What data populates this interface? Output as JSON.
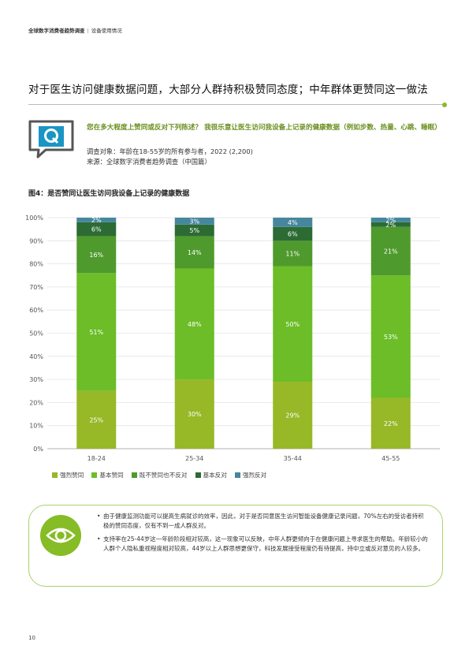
{
  "header": {
    "report": "全球数字消费者趋势调查",
    "section": "设备使用情况"
  },
  "headline": "对于医生访问健康数据问题，大部分人群持积极赞同态度；中年群体更赞同这一做法",
  "question": {
    "text": "您在多大程度上赞同或反对下列陈述？ 我很乐意让医生访问我设备上记录的健康数据（例如步数、热量、心跳、睡眠）",
    "respondents": "调查对象：年龄在18-55岁的所有参与者，2022 (2,200)",
    "source": "来源：全球数字消费者趋势调查（中国篇）"
  },
  "figure_title": "图4：是否赞同让医生访问我设备上记录的健康数据",
  "chart_data": {
    "type": "bar",
    "stacked": true,
    "categories": [
      "18-24",
      "25-34",
      "35-44",
      "45-55"
    ],
    "series": [
      {
        "name": "强烈赞同",
        "color": "#97b827",
        "values": [
          25,
          30,
          29,
          22
        ],
        "labels": [
          "25%",
          "30%",
          "29%",
          "22%"
        ]
      },
      {
        "name": "基本赞同",
        "color": "#6cbd27",
        "values": [
          51,
          48,
          50,
          53
        ],
        "labels": [
          "51%",
          "48%",
          "50%",
          "53%"
        ]
      },
      {
        "name": "既不赞同也不反对",
        "color": "#4f9a2c",
        "values": [
          16,
          14,
          11,
          21
        ],
        "labels": [
          "16%",
          "14%",
          "11%",
          "21%"
        ]
      },
      {
        "name": "基本反对",
        "color": "#2c6b34",
        "values": [
          6,
          5,
          6,
          2
        ],
        "labels": [
          "6%",
          "5%",
          "6%",
          "2%"
        ]
      },
      {
        "name": "强烈反对",
        "color": "#46879e",
        "values": [
          2,
          3,
          4,
          2
        ],
        "labels": [
          "2%",
          "3%",
          "4%",
          "2%"
        ]
      }
    ],
    "yticks": [
      "0%",
      "10%",
      "20%",
      "30%",
      "40%",
      "50%",
      "60%",
      "70%",
      "80%",
      "90%",
      "100%"
    ],
    "ylim": [
      0,
      100
    ],
    "grid": true,
    "legend": "bottom-left"
  },
  "notes": [
    "由于健康监测功能可以提高生病就诊的效率，因此，对于是否同意医生访问智能设备健康记录问题，70%左右的受访者持积极的赞同态度，仅有不到一成人群反对。",
    "支持率在25-44岁这一年龄阶段相对较高，这一现象可以反映，中年人群更倾向于在健康问题上寻求医生的帮助。年龄较小的人群个人隐私重视程度相对较高，44岁以上人群思想更保守，科技发展接受程度仍有待提高，持中立或反对意见的人较多。"
  ],
  "page_number": "10",
  "icons": {
    "question": "q-chat-icon",
    "insight": "eye-icon"
  }
}
